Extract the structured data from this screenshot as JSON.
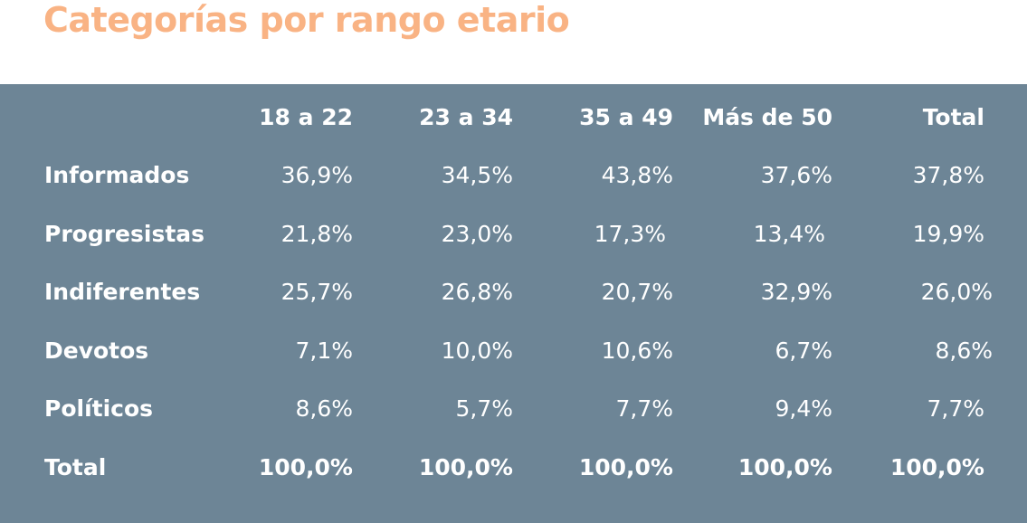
{
  "title": "Categorías por rango etario",
  "table": {
    "columns": [
      "18 a 22",
      "23 a 34",
      "35 a 49",
      "Más de 50",
      "Total"
    ],
    "rows": [
      {
        "label": "Informados",
        "values": [
          "36,9%",
          "34,5%",
          "43,8%",
          "37,6%",
          "37,8%"
        ]
      },
      {
        "label": "Progresistas",
        "values": [
          "21,8%",
          "23,0%",
          "17,3%",
          "13,4%",
          "19,9%"
        ]
      },
      {
        "label": "Indiferentes",
        "values": [
          "25,7%",
          "26,8%",
          "20,7%",
          "32,9%",
          "26,0%"
        ]
      },
      {
        "label": "Devotos",
        "values": [
          "7,1%",
          "10,0%",
          "10,6%",
          "6,7%",
          "8,6%"
        ]
      },
      {
        "label": "Políticos",
        "values": [
          "8,6%",
          "5,7%",
          "7,7%",
          "9,4%",
          "7,7%"
        ]
      },
      {
        "label": "Total",
        "values": [
          "100,0%",
          "100,0%",
          "100,0%",
          "100,0%",
          "100,0%"
        ]
      }
    ]
  },
  "colors": {
    "title": "#f9b384",
    "panel": "#6d8596",
    "text": "#ffffff"
  }
}
